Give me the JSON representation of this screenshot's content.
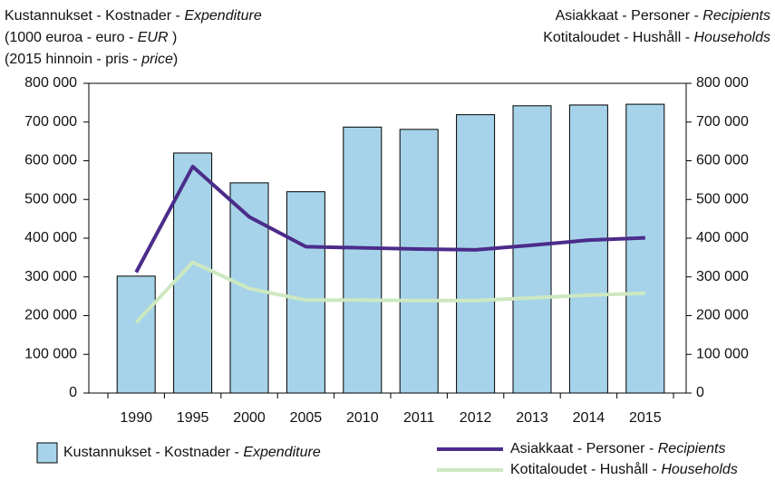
{
  "chart_data": {
    "type": "bar_line",
    "left_title_lines": [
      "Kustannukset - Kostnader - Expenditure",
      "(1000 euroa - euro - EUR )",
      "(2015 hinnoin - pris - price)"
    ],
    "right_title_lines": [
      "Asiakkaat - Personer - Recipients",
      "Kotitaloudet - Hushåll - Households"
    ],
    "categories": [
      "1990",
      "1995",
      "2000",
      "2005",
      "2010",
      "2011",
      "2012",
      "2013",
      "2014",
      "2015"
    ],
    "series": [
      {
        "name": "Kustannukset - Kostnader - Expenditure",
        "type": "bar",
        "color": "#a6d3ea",
        "axis": "y",
        "values": [
          302000,
          620000,
          543000,
          520000,
          687000,
          681000,
          719000,
          742000,
          744000,
          746000
        ]
      },
      {
        "name": "Asiakkaat - Personer - Recipients",
        "type": "line",
        "color": "#4b2c8a",
        "axis": "y2",
        "values": [
          312000,
          585000,
          455000,
          378000,
          375000,
          372000,
          370000,
          382000,
          395000,
          401000
        ]
      },
      {
        "name": "Kotitaloudet - Hushåll - Households",
        "type": "line",
        "color": "#cde8c0",
        "axis": "y2",
        "values": [
          182000,
          338000,
          270000,
          240000,
          240000,
          239000,
          239000,
          246000,
          253000,
          258000
        ]
      }
    ],
    "ylim": [
      0,
      800000
    ],
    "yticks": [
      0,
      {
        "value": 100000,
        "label": "100 000"
      },
      {
        "value": 200000,
        "label": "200 000"
      },
      {
        "value": 300000,
        "label": "300 000"
      },
      {
        "value": 400000,
        "label": "400 000"
      },
      {
        "value": 500000,
        "label": "500 000"
      },
      {
        "value": 600000,
        "label": "600 000"
      },
      {
        "value": 700000,
        "label": "700 000"
      },
      {
        "value": 800000,
        "label": "800 000"
      }
    ],
    "y2lim": [
      0,
      800000
    ],
    "y2ticks": [
      0,
      {
        "value": 100000,
        "label": "100 000"
      },
      {
        "value": 200000,
        "label": "200 000"
      },
      {
        "value": 300000,
        "label": "300 000"
      },
      {
        "value": 400000,
        "label": "400 000"
      },
      {
        "value": 500000,
        "label": "500 000"
      },
      {
        "value": 600000,
        "label": "600 000"
      },
      {
        "value": 700000,
        "label": "700 000"
      },
      {
        "value": 800000,
        "label": "800 000"
      }
    ],
    "grid": false
  }
}
